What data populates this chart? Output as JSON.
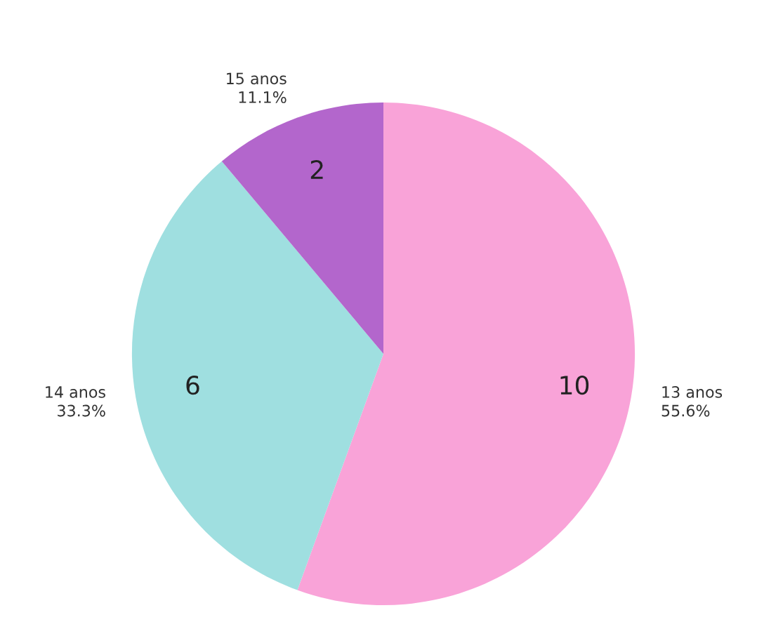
{
  "chart_data": {
    "type": "pie",
    "categories": [
      "13 anos",
      "14 anos",
      "15 anos"
    ],
    "values": [
      10,
      6,
      2
    ],
    "colors": [
      "#f9a3d8",
      "#9fdfe0",
      "#b366cc"
    ],
    "data_labels": true,
    "annotations": [
      "55.6%",
      "33.3%",
      "11.1%"
    ]
  }
}
